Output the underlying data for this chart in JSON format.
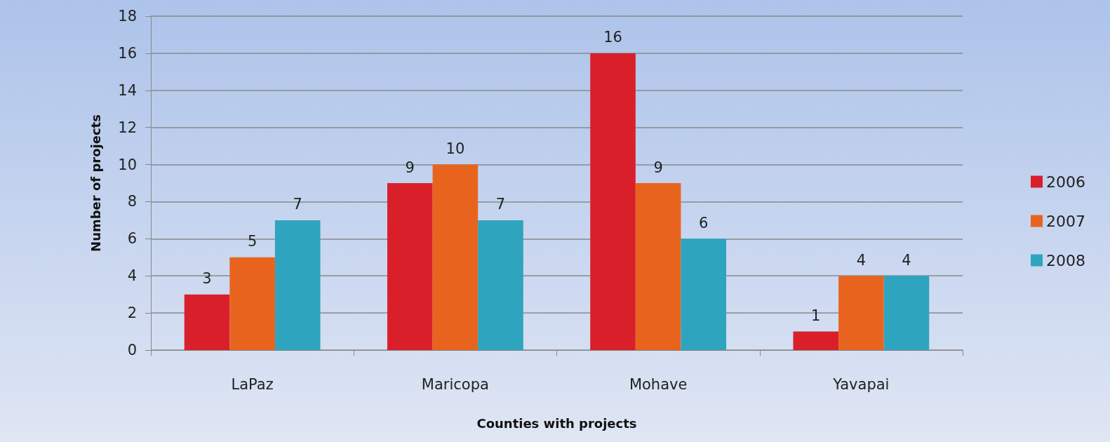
{
  "chart_data": {
    "type": "bar",
    "xlabel": "Counties with projects",
    "ylabel": "Number of projects",
    "categories": [
      "LaPaz",
      "Maricopa",
      "Mohave",
      "Yavapai"
    ],
    "series": [
      {
        "name": "2006",
        "color": "#d91f2a",
        "values": [
          3,
          9,
          16,
          1
        ]
      },
      {
        "name": "2007",
        "color": "#e8641e",
        "values": [
          5,
          10,
          9,
          4
        ]
      },
      {
        "name": "2008",
        "color": "#2ea4bf",
        "values": [
          7,
          7,
          6,
          4
        ]
      }
    ],
    "ylim": [
      0,
      18
    ],
    "yticks": [
      0,
      2,
      4,
      6,
      8,
      10,
      12,
      14,
      16,
      18
    ],
    "grid": "y",
    "legend": "right",
    "data_labels": true
  }
}
